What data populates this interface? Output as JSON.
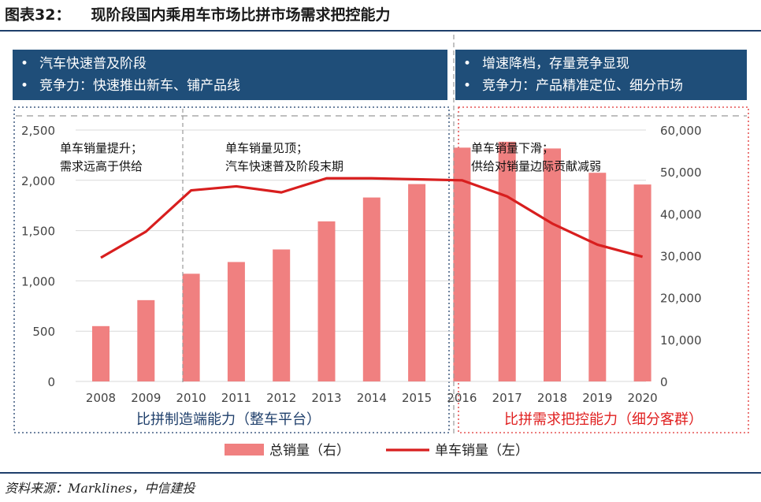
{
  "figure": {
    "label": "图表32：",
    "title": "现阶段国内乘用车市场比拼市场需求把控能力"
  },
  "banners": {
    "left": [
      "汽车快速普及阶段",
      "竞争力：快速推出新车、铺产品线"
    ],
    "right": [
      "增速降档，存量竞争显现",
      "竞争力：产品精准定位、细分市场"
    ],
    "bullet": "•",
    "color": "#1f4e79"
  },
  "chart_data": {
    "type": "bar+line",
    "categories": [
      "2008",
      "2009",
      "2010",
      "2011",
      "2012",
      "2013",
      "2014",
      "2015",
      "2016",
      "2017",
      "2018",
      "2019",
      "2020"
    ],
    "series": [
      {
        "name": "总销量（右）",
        "type": "bar",
        "axis": "right",
        "color": "#f08080",
        "values": [
          13200,
          19400,
          25700,
          28500,
          31500,
          38200,
          43900,
          47100,
          55800,
          57200,
          55600,
          49800,
          47000
        ]
      },
      {
        "name": "单车销量（左）",
        "type": "line",
        "axis": "left",
        "color": "#d81e1e",
        "values": [
          1230,
          1490,
          1900,
          1940,
          1880,
          2020,
          2020,
          2010,
          2000,
          1840,
          1570,
          1360,
          1240
        ]
      }
    ],
    "y_left": {
      "ylim": [
        0,
        2500
      ],
      "ticks": [
        "0",
        "500",
        "1,000",
        "1,500",
        "2,000",
        "2,500"
      ]
    },
    "y_right": {
      "ylim": [
        0,
        60000
      ],
      "ticks": [
        "0",
        "10,000",
        "20,000",
        "30,000",
        "40,000",
        "50,000",
        "60,000"
      ]
    },
    "annotations": [
      {
        "lines": [
          "单车销量提升；",
          "需求远高于供给"
        ]
      },
      {
        "lines": [
          "单车销量见顶；",
          "汽车快速普及阶段末期"
        ]
      },
      {
        "lines": [
          "单车销量下滑；",
          "供给对销量边际贡献减弱"
        ]
      }
    ],
    "region_labels": [
      {
        "text": "比拼制造端能力（整车平台）",
        "color": "#1f3f6b"
      },
      {
        "text": "比拼需求把控能力（细分客群）",
        "color": "#e02020"
      }
    ],
    "legend_position": "bottom",
    "grid": true
  },
  "source": "资料来源：Marklines，中信建投"
}
